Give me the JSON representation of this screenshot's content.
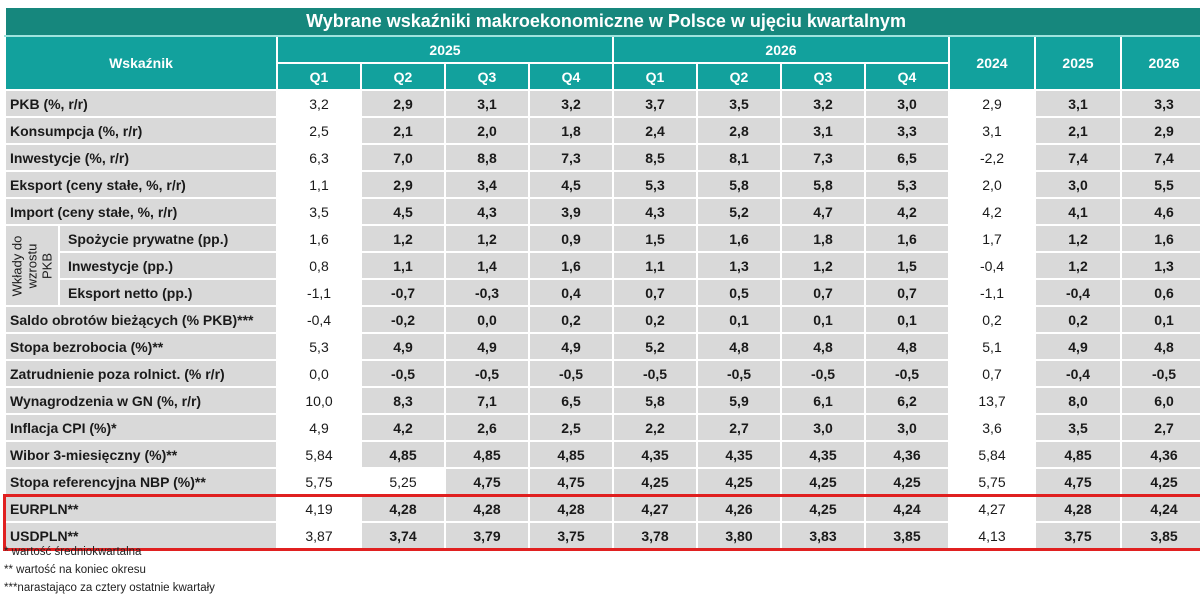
{
  "title": "Wybrane wskaźniki makroekonomiczne w Polsce w ujęciu kwartalnym",
  "header": {
    "indicator_label": "Wskaźnik",
    "year_groups": [
      "2025",
      "2026"
    ],
    "quarters": [
      "Q1",
      "Q2",
      "Q3",
      "Q4",
      "Q1",
      "Q2",
      "Q3",
      "Q4"
    ],
    "annual_years": [
      "2024",
      "2025",
      "2026"
    ]
  },
  "group_label": [
    "Wkłady do",
    "wzrostu",
    "PKB"
  ],
  "rows": [
    {
      "label": "PKB (%, r/r)",
      "values": [
        "3,2",
        "2,9",
        "3,1",
        "3,2",
        "3,7",
        "3,5",
        "3,2",
        "3,0",
        "2,9",
        "3,1",
        "3,3"
      ]
    },
    {
      "label": "Konsumpcja (%, r/r)",
      "values": [
        "2,5",
        "2,1",
        "2,0",
        "1,8",
        "2,4",
        "2,8",
        "3,1",
        "3,3",
        "3,1",
        "2,1",
        "2,9"
      ]
    },
    {
      "label": "Inwestycje (%, r/r)",
      "values": [
        "6,3",
        "7,0",
        "8,8",
        "7,3",
        "8,5",
        "8,1",
        "7,3",
        "6,5",
        "-2,2",
        "7,4",
        "7,4"
      ]
    },
    {
      "label": "Eksport (ceny stałe, %, r/r)",
      "values": [
        "1,1",
        "2,9",
        "3,4",
        "4,5",
        "5,3",
        "5,8",
        "5,8",
        "5,3",
        "2,0",
        "3,0",
        "5,5"
      ]
    },
    {
      "label": "Import (ceny stałe, %, r/r)",
      "values": [
        "3,5",
        "4,5",
        "4,3",
        "3,9",
        "4,3",
        "5,2",
        "4,7",
        "4,2",
        "4,2",
        "4,1",
        "4,6"
      ]
    },
    {
      "label": "Spożycie prywatne (pp.)",
      "values": [
        "1,6",
        "1,2",
        "1,2",
        "0,9",
        "1,5",
        "1,6",
        "1,8",
        "1,6",
        "1,7",
        "1,2",
        "1,6"
      ]
    },
    {
      "label": "Inwestycje (pp.)",
      "values": [
        "0,8",
        "1,1",
        "1,4",
        "1,6",
        "1,1",
        "1,3",
        "1,2",
        "1,5",
        "-0,4",
        "1,2",
        "1,3"
      ]
    },
    {
      "label": "Eksport netto (pp.)",
      "values": [
        "-1,1",
        "-0,7",
        "-0,3",
        "0,4",
        "0,7",
        "0,5",
        "0,7",
        "0,7",
        "-1,1",
        "-0,4",
        "0,6"
      ]
    },
    {
      "label": "Saldo obrotów bieżących (% PKB)***",
      "values": [
        "-0,4",
        "-0,2",
        "0,0",
        "0,2",
        "0,2",
        "0,1",
        "0,1",
        "0,1",
        "0,2",
        "0,2",
        "0,1"
      ]
    },
    {
      "label": "Stopa bezrobocia (%)**",
      "values": [
        "5,3",
        "4,9",
        "4,9",
        "4,9",
        "5,2",
        "4,8",
        "4,8",
        "4,8",
        "5,1",
        "4,9",
        "4,8"
      ]
    },
    {
      "label": "Zatrudnienie poza rolnict. (% r/r)",
      "values": [
        "0,0",
        "-0,5",
        "-0,5",
        "-0,5",
        "-0,5",
        "-0,5",
        "-0,5",
        "-0,5",
        "0,7",
        "-0,4",
        "-0,5"
      ]
    },
    {
      "label": "Wynagrodzenia w GN (%, r/r)",
      "values": [
        "10,0",
        "8,3",
        "7,1",
        "6,5",
        "5,8",
        "5,9",
        "6,1",
        "6,2",
        "13,7",
        "8,0",
        "6,0"
      ]
    },
    {
      "label": "Inflacja CPI (%)*",
      "values": [
        "4,9",
        "4,2",
        "2,6",
        "2,5",
        "2,2",
        "2,7",
        "3,0",
        "3,0",
        "3,6",
        "3,5",
        "2,7"
      ]
    },
    {
      "label": "Wibor 3-miesięczny (%)**",
      "values": [
        "5,84",
        "4,85",
        "4,85",
        "4,85",
        "4,35",
        "4,35",
        "4,35",
        "4,36",
        "5,84",
        "4,85",
        "4,36"
      ]
    },
    {
      "label": "Stopa referencyjna NBP (%)**",
      "values": [
        "5,75",
        "5,25",
        "4,75",
        "4,75",
        "4,25",
        "4,25",
        "4,25",
        "4,25",
        "5,75",
        "4,75",
        "4,25"
      ]
    },
    {
      "label": "EURPLN**",
      "values": [
        "4,19",
        "4,28",
        "4,28",
        "4,28",
        "4,27",
        "4,26",
        "4,25",
        "4,24",
        "4,27",
        "4,28",
        "4,24"
      ]
    },
    {
      "label": "USDPLN**",
      "values": [
        "3,87",
        "3,74",
        "3,79",
        "3,75",
        "3,78",
        "3,80",
        "3,83",
        "3,85",
        "4,13",
        "3,75",
        "3,85"
      ]
    }
  ],
  "notes": [
    "* wartość średniokwartalna",
    "** wartość na koniec okresu",
    "***narastająco za cztery ostatnie kwartały"
  ],
  "colors": {
    "title_bg": "#16877d",
    "header_bg": "#12a19d",
    "cell_bg": "#d9d9d9",
    "highlight_border": "#e02020"
  }
}
